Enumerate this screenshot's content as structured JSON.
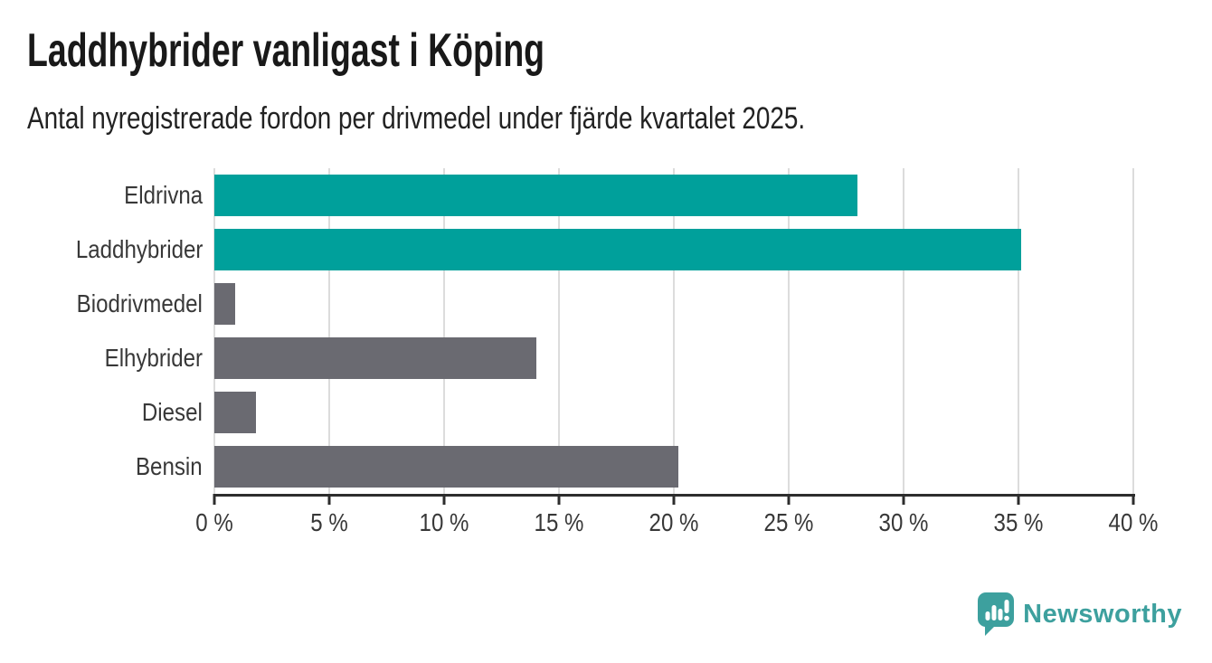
{
  "chart_data": {
    "type": "bar",
    "orientation": "horizontal",
    "title": "Laddhybrider vanligast i Köping",
    "subtitle": "Antal nyregistrerade fordon per drivmedel under fjärde kvartalet 2025.",
    "categories": [
      "Eldrivna",
      "Laddhybrider",
      "Biodrivmedel",
      "Elhybrider",
      "Diesel",
      "Bensin"
    ],
    "values": [
      28.0,
      35.1,
      0.9,
      14.0,
      1.8,
      20.2
    ],
    "value_unit": "%",
    "bar_colors": [
      "#00a09b",
      "#00a09b",
      "#6a6a71",
      "#6a6a71",
      "#6a6a71",
      "#6a6a71"
    ],
    "highlight_color": "#00a09b",
    "default_color": "#6a6a71",
    "xlim": [
      0,
      40
    ],
    "tick_values": [
      0,
      5,
      10,
      15,
      20,
      25,
      30,
      35,
      40
    ],
    "tick_labels": [
      "0 %",
      "5 %",
      "10 %",
      "15 %",
      "20 %",
      "25 %",
      "30 %",
      "35 %",
      "40 %"
    ],
    "grid": true,
    "legend": false,
    "value_labels_shown": false
  },
  "branding": {
    "wordmark": "Newsworthy",
    "brand_color": "#3da09e",
    "icon": "newsworthy-speech-bubble-bar-chart-icon"
  }
}
